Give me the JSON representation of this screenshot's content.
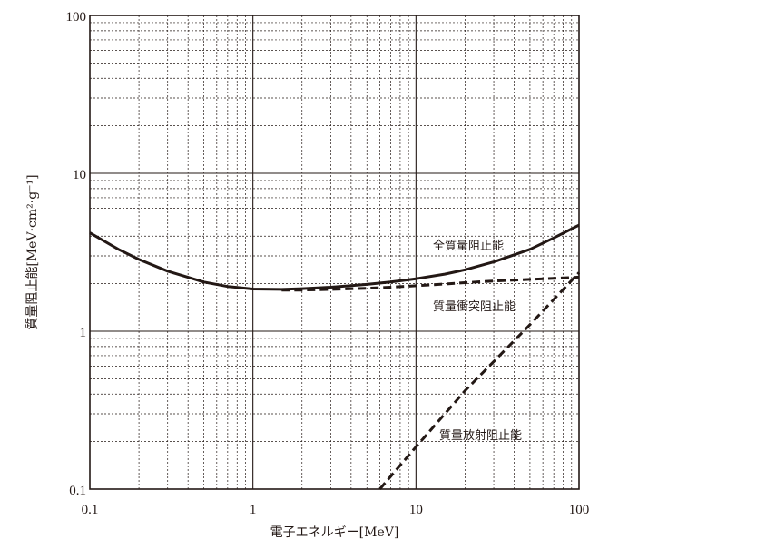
{
  "chart_data": {
    "type": "line",
    "xlabel": "電子エネルギー[MeV]",
    "ylabel": "質量阻止能[MeV·cm²·g⁻¹]",
    "x_scale": "log",
    "y_scale": "log",
    "xlim": [
      0.1,
      100
    ],
    "ylim": [
      0.1,
      100
    ],
    "grid": true,
    "x_tick_labels": [
      "0.1",
      "1",
      "10",
      "100"
    ],
    "y_tick_labels": [
      "0.1",
      "1",
      "10",
      "100"
    ],
    "series": [
      {
        "name": "全質量阻止能",
        "style": "solid",
        "x": [
          0.1,
          0.15,
          0.2,
          0.3,
          0.5,
          0.7,
          1,
          1.5,
          2,
          3,
          5,
          7,
          10,
          15,
          20,
          30,
          50,
          70,
          100
        ],
        "y": [
          4.2,
          3.3,
          2.85,
          2.4,
          2.05,
          1.92,
          1.85,
          1.84,
          1.86,
          1.9,
          1.98,
          2.05,
          2.15,
          2.3,
          2.45,
          2.75,
          3.3,
          3.9,
          4.7
        ]
      },
      {
        "name": "質量衝突阻止能",
        "style": "dashed",
        "x": [
          1.5,
          2,
          3,
          5,
          7,
          10,
          15,
          20,
          30,
          50,
          70,
          100
        ],
        "y": [
          1.82,
          1.82,
          1.84,
          1.87,
          1.9,
          1.94,
          1.99,
          2.03,
          2.08,
          2.13,
          2.16,
          2.2
        ]
      },
      {
        "name": "質量放射阻止能",
        "style": "dashed",
        "x": [
          6,
          10,
          20,
          50,
          100
        ],
        "y": [
          0.1,
          0.185,
          0.42,
          1.1,
          2.35
        ]
      }
    ]
  }
}
